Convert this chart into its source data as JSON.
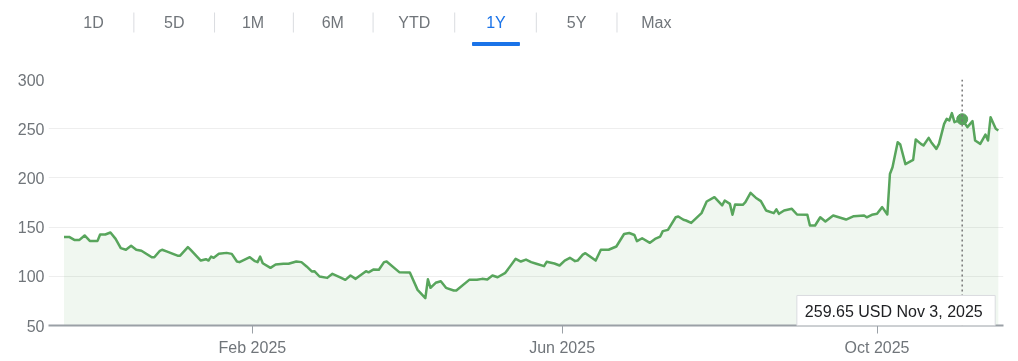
{
  "chart_data": {
    "type": "area",
    "color": "#58a55c",
    "x": [
      "2024-11-20",
      "2024-11-22",
      "2024-11-24",
      "2024-11-26",
      "2024-11-28",
      "2024-11-30",
      "2024-12-03",
      "2024-12-04",
      "2024-12-06",
      "2024-12-08",
      "2024-12-10",
      "2024-12-12",
      "2024-12-14",
      "2024-12-16",
      "2024-12-18",
      "2024-12-20",
      "2024-12-24",
      "2024-12-25",
      "2024-12-27",
      "2024-12-28",
      "2024-12-30",
      "2025-01-03",
      "2025-01-04",
      "2025-01-07",
      "2025-01-08",
      "2025-01-12",
      "2025-01-14",
      "2025-01-15",
      "2025-01-16",
      "2025-01-17",
      "2025-01-19",
      "2025-01-22",
      "2025-01-24",
      "2025-01-26",
      "2025-01-27",
      "2025-01-31",
      "2025-02-02",
      "2025-02-03",
      "2025-02-04",
      "2025-02-05",
      "2025-02-08",
      "2025-02-10",
      "2025-02-13",
      "2025-02-15",
      "2025-02-18",
      "2025-02-20",
      "2025-02-22",
      "2025-02-24",
      "2025-02-25",
      "2025-02-27",
      "2025-03-02",
      "2025-03-04",
      "2025-03-07",
      "2025-03-09",
      "2025-03-11",
      "2025-03-13",
      "2025-03-17",
      "2025-03-18",
      "2025-03-20",
      "2025-03-22",
      "2025-03-24",
      "2025-03-25",
      "2025-03-30",
      "2025-04-03",
      "2025-04-06",
      "2025-04-07",
      "2025-04-09",
      "2025-04-10",
      "2025-04-11",
      "2025-04-13",
      "2025-04-15",
      "2025-04-17",
      "2025-04-20",
      "2025-04-21",
      "2025-04-26",
      "2025-04-29",
      "2025-05-01",
      "2025-05-03",
      "2025-05-05",
      "2025-05-07",
      "2025-05-10",
      "2025-05-14",
      "2025-05-16",
      "2025-05-18",
      "2025-05-20",
      "2025-05-22",
      "2025-05-25",
      "2025-05-26",
      "2025-05-29",
      "2025-05-31",
      "2025-06-02",
      "2025-06-04",
      "2025-06-06",
      "2025-06-07",
      "2025-06-09",
      "2025-06-10",
      "2025-06-14",
      "2025-06-16",
      "2025-06-19",
      "2025-06-22",
      "2025-06-25",
      "2025-06-27",
      "2025-06-29",
      "2025-06-30",
      "2025-07-02",
      "2025-07-05",
      "2025-07-07",
      "2025-07-09",
      "2025-07-10",
      "2025-07-12",
      "2025-07-15",
      "2025-07-16",
      "2025-07-18",
      "2025-07-19",
      "2025-07-21",
      "2025-07-25",
      "2025-07-27",
      "2025-07-30",
      "2025-08-02",
      "2025-08-03",
      "2025-08-05",
      "2025-08-06",
      "2025-08-07",
      "2025-08-10",
      "2025-08-11",
      "2025-08-13",
      "2025-08-15",
      "2025-08-17",
      "2025-08-19",
      "2025-08-22",
      "2025-08-23",
      "2025-08-24",
      "2025-08-26",
      "2025-08-29",
      "2025-08-31",
      "2025-09-04",
      "2025-09-05",
      "2025-09-07",
      "2025-09-09",
      "2025-09-11",
      "2025-09-14",
      "2025-09-19",
      "2025-09-22",
      "2025-09-26",
      "2025-09-27",
      "2025-09-29",
      "2025-10-01",
      "2025-10-03",
      "2025-10-05",
      "2025-10-06",
      "2025-10-07",
      "2025-10-09",
      "2025-10-10",
      "2025-10-12",
      "2025-10-15",
      "2025-10-16",
      "2025-10-18",
      "2025-10-19",
      "2025-10-21",
      "2025-10-22",
      "2025-10-24",
      "2025-10-25",
      "2025-10-27",
      "2025-10-28",
      "2025-10-29",
      "2025-10-30",
      "2025-10-31",
      "2025-11-03",
      "2025-11-05",
      "2025-11-07",
      "2025-11-08",
      "2025-11-10",
      "2025-11-12",
      "2025-11-13",
      "2025-11-14",
      "2025-11-16",
      "2025-11-17"
    ],
    "values": [
      140,
      140,
      137,
      137,
      141.5,
      136,
      136,
      142.5,
      142.5,
      144.5,
      138,
      128.6,
      127,
      131,
      127,
      126,
      119.4,
      119.4,
      125.5,
      127,
      125,
      121,
      121,
      129.6,
      127,
      116,
      117.4,
      116,
      120,
      118.8,
      122.8,
      123.8,
      122.8,
      115,
      114.4,
      119.4,
      115.4,
      114.4,
      120,
      113.3,
      108.6,
      112,
      112.7,
      112.7,
      115,
      114.4,
      110,
      105,
      105.2,
      99.8,
      98.4,
      102.5,
      99,
      96.4,
      100.8,
      97.4,
      105.2,
      104,
      107,
      106.6,
      114.4,
      115,
      104,
      103.9,
      86.2,
      83.5,
      77.8,
      97,
      88.3,
      93.4,
      95,
      88.3,
      85.6,
      85.6,
      96.4,
      96.4,
      97.4,
      96.7,
      100.8,
      99,
      103.5,
      117.8,
      115,
      117,
      114.4,
      112.7,
      110.3,
      114.7,
      113,
      111,
      116,
      118.8,
      115.4,
      116,
      122,
      123.5,
      116,
      127,
      127,
      130.3,
      143,
      144,
      142,
      135.7,
      138.7,
      134,
      138,
      140.4,
      145.9,
      147.2,
      160,
      160.8,
      157.4,
      156.7,
      154.3,
      164.2,
      176,
      180.4,
      172,
      177,
      173.6,
      162.5,
      173,
      172.6,
      175.3,
      184.8,
      179.9,
      176.4,
      166.9,
      164.2,
      168,
      163.5,
      166.9,
      168.6,
      162.8,
      162.5,
      151.6,
      151.6,
      160,
      155.7,
      161.8,
      157.7,
      161.1,
      161.8,
      160,
      162.5,
      163.5,
      170.3,
      162.8,
      204,
      210.8,
      236.3,
      233.9,
      214,
      218.3,
      239,
      234.6,
      232.9,
      240.7,
      236.3,
      229.5,
      234.6,
      254.9,
      260,
      258.3,
      265.8,
      256.6,
      259.65,
      251.6,
      257.7,
      238,
      234.6,
      244,
      238,
      261.7,
      249.9,
      248.2
    ],
    "xlim": [
      "2024-11-14",
      "2025-11-19"
    ],
    "xticks": [
      {
        "value": "2025-02-01",
        "label": "Feb 2025"
      },
      {
        "value": "2025-06-01",
        "label": "Jun 2025"
      },
      {
        "value": "2025-10-01",
        "label": "Oct 2025"
      }
    ],
    "ylim": [
      50,
      300
    ],
    "yticks": [
      50,
      100,
      150,
      200,
      250,
      300
    ],
    "grid": "y",
    "ref_lines": [
      {
        "axis": "x",
        "value": "2025-11-03",
        "line_style": "dotted",
        "color": "#757575"
      }
    ],
    "annotations": [
      "1D",
      "5D",
      "1M",
      "6M",
      "YTD",
      "1Y",
      "5Y",
      "Max",
      "259.65 USD  Nov 3, 2025"
    ]
  }
}
